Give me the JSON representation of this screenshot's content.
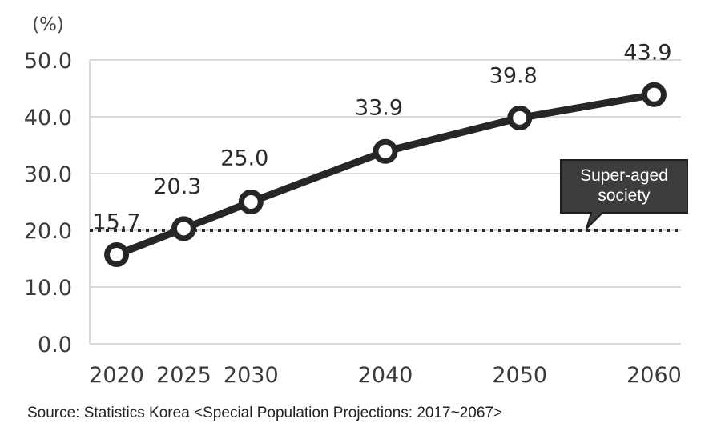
{
  "chart_data": {
    "type": "line",
    "unit_label": "(%)",
    "x": [
      "2020",
      "2025",
      "2030",
      "2040",
      "2050",
      "2060"
    ],
    "x_values": [
      2020,
      2025,
      2030,
      2040,
      2050,
      2060
    ],
    "series": [
      {
        "values": [
          15.7,
          20.3,
          25.0,
          33.9,
          39.8,
          43.9
        ]
      }
    ],
    "data_labels": [
      "15.7",
      "20.3",
      "25.0",
      "33.9",
      "39.8",
      "43.9"
    ],
    "yticks": [
      "0.0",
      "10.0",
      "20.0",
      "30.0",
      "40.0",
      "50.0"
    ],
    "ylim": [
      0,
      50
    ],
    "reference_line": {
      "value": 20.0,
      "style": "dotted",
      "label": "Super-aged society"
    },
    "grid": true,
    "line_color": "#262626",
    "marker_fill": "#ffffff",
    "grid_color": "#d9d9d9",
    "callout_color": "#3d3d3d"
  },
  "callout": {
    "line1": "Super-aged",
    "line2": "society"
  },
  "source": "Source: Statistics Korea <Special Population Projections: 2017~2067>"
}
